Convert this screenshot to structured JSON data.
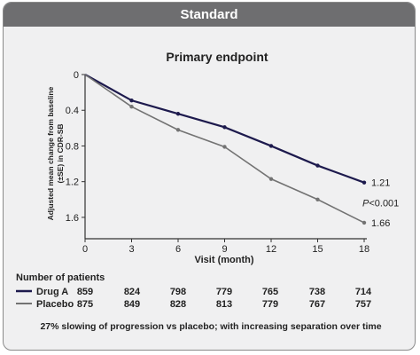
{
  "header": {
    "title": "Standard"
  },
  "chart_data": {
    "type": "line",
    "title": "Primary endpoint",
    "xlabel": "Visit (month)",
    "ylabel_lines": [
      "Adjusted mean change from baseline",
      "(±SE) in CDR-SB"
    ],
    "x": [
      0,
      3,
      6,
      9,
      12,
      15,
      18
    ],
    "xlim": [
      0,
      18
    ],
    "ylim": [
      0,
      1.8
    ],
    "y_inverted": true,
    "y_ticks": [
      "0",
      "0.4",
      "0.8",
      "1.2",
      "1.6"
    ],
    "x_ticks": [
      "0",
      "3",
      "6",
      "9",
      "12",
      "15",
      "18"
    ],
    "series": [
      {
        "name": "Drug A",
        "color": "#1d1a4d",
        "values": [
          0,
          0.29,
          0.44,
          0.59,
          0.8,
          1.02,
          1.21
        ],
        "end_label": "1.21"
      },
      {
        "name": "Placebo",
        "color": "#737373",
        "values": [
          0,
          0.36,
          0.62,
          0.81,
          1.17,
          1.4,
          1.66
        ],
        "end_label": "1.66"
      }
    ],
    "annotation": "P<0.001"
  },
  "patients": {
    "title": "Number of patients",
    "rows": [
      {
        "name": "Drug A",
        "color": "#1d1a4d",
        "counts": [
          "859",
          "824",
          "798",
          "779",
          "765",
          "738",
          "714"
        ]
      },
      {
        "name": "Placebo",
        "color": "#737373",
        "counts": [
          "875",
          "849",
          "828",
          "813",
          "779",
          "767",
          "757"
        ]
      }
    ]
  },
  "footnote": "27% slowing of progression vs placebo; with increasing separation over time"
}
